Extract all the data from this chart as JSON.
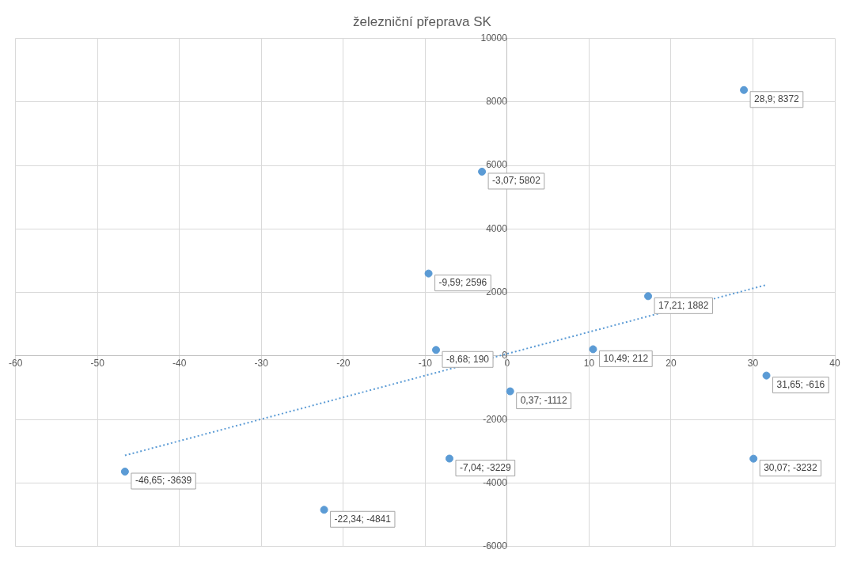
{
  "chart_data": {
    "type": "scatter",
    "title": "železniční přeprava SK",
    "xlim": [
      -60,
      40
    ],
    "xticks": [
      -60,
      -50,
      -40,
      -30,
      -20,
      -10,
      0,
      10,
      20,
      30,
      40
    ],
    "ylim": [
      -6000,
      10000
    ],
    "yticks": [
      -6000,
      -4000,
      -2000,
      0,
      2000,
      4000,
      6000,
      8000,
      10000
    ],
    "grid": true,
    "legend": false,
    "series": [
      {
        "color": "#5b9bd5",
        "marker": "circle",
        "x": [
          28.9,
          -3.07,
          -9.59,
          17.21,
          -8.68,
          10.49,
          0.37,
          31.65,
          -7.04,
          30.07,
          -46.65,
          -22.34
        ],
        "values": [
          8372,
          5802,
          2596,
          1882,
          190,
          212,
          -1112,
          -616,
          -3229,
          -3232,
          -3639,
          -4841
        ],
        "value_labels": [
          "28,9; 8372",
          "-3,07; 5802",
          "-9,59; 2596",
          "17,21; 1882",
          "-8,68; 190",
          "10,49; 212",
          "0,37; -1112",
          "31,65; -616",
          "-7,04; -3229",
          "30,07; -3232",
          "-46,65; -3639",
          "-22,34; -4841"
        ]
      },
      {
        "type": "line",
        "color": "#5b9bd5",
        "marker": "none",
        "line_style": "dotted",
        "x": [
          -46.65,
          31.65
        ],
        "values": [
          -3130,
          2240
        ]
      }
    ]
  }
}
